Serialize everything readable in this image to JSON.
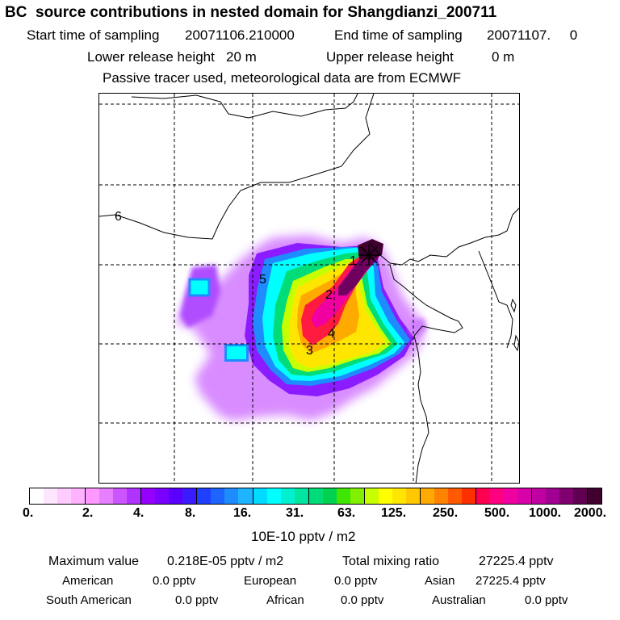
{
  "title": "BC  source contributions in nested domain for Shangdianzi_200711",
  "sampling": {
    "start_label": "Start time of sampling",
    "start_value": "20071106.210000",
    "end_label": "End time of sampling",
    "end_value": "20071107.     0"
  },
  "release": {
    "lower_label": "Lower release height",
    "lower_value": "20 m",
    "upper_label": "Upper release height",
    "upper_value": "0 m"
  },
  "note": "Passive tracer used, meteorological data are from ECMWF",
  "map": {
    "site_labels": [
      "1",
      "2",
      "3",
      "4",
      "5",
      "6"
    ]
  },
  "colorbar": {
    "colors": [
      "#ffffff",
      "#ffe6ff",
      "#ffccff",
      "#ffb3ff",
      "#ff99ff",
      "#e680ff",
      "#cc55ff",
      "#b033ff",
      "#9400ff",
      "#7a00ff",
      "#5a00ff",
      "#3a1aff",
      "#2040ff",
      "#1e64ff",
      "#1e8cff",
      "#1eb4ff",
      "#00dcff",
      "#00ffff",
      "#00f0d0",
      "#00e6a0",
      "#00dc78",
      "#00d250",
      "#40e600",
      "#80f000",
      "#c8ff00",
      "#ffff00",
      "#ffe600",
      "#ffc800",
      "#ffaa00",
      "#ff8200",
      "#ff5a00",
      "#ff3000",
      "#ff0050",
      "#ff0080",
      "#f000a0",
      "#d800a8",
      "#c000a0",
      "#a00090",
      "#800070",
      "#600050",
      "#400030"
    ],
    "ticks": [
      "0.",
      "2.",
      "4.",
      "8.",
      "16.",
      "31.",
      "63.",
      "125.",
      "250.",
      "500.",
      "1000.",
      "2000."
    ],
    "units": "10E-10 pptv / m2"
  },
  "stats": {
    "max_label": "Maximum value",
    "max_value": "0.218E-05 pptv / m2",
    "total_label": "Total mixing ratio",
    "total_value": "27225.4 pptv",
    "regions": [
      {
        "name": "American",
        "value": "0.0 pptv"
      },
      {
        "name": "European",
        "value": "0.0 pptv"
      },
      {
        "name": "Asian",
        "value": "27225.4 pptv"
      },
      {
        "name": "South American",
        "value": "0.0 pptv"
      },
      {
        "name": "African",
        "value": "0.0 pptv"
      },
      {
        "name": "Australian",
        "value": "0.0 pptv"
      }
    ]
  }
}
